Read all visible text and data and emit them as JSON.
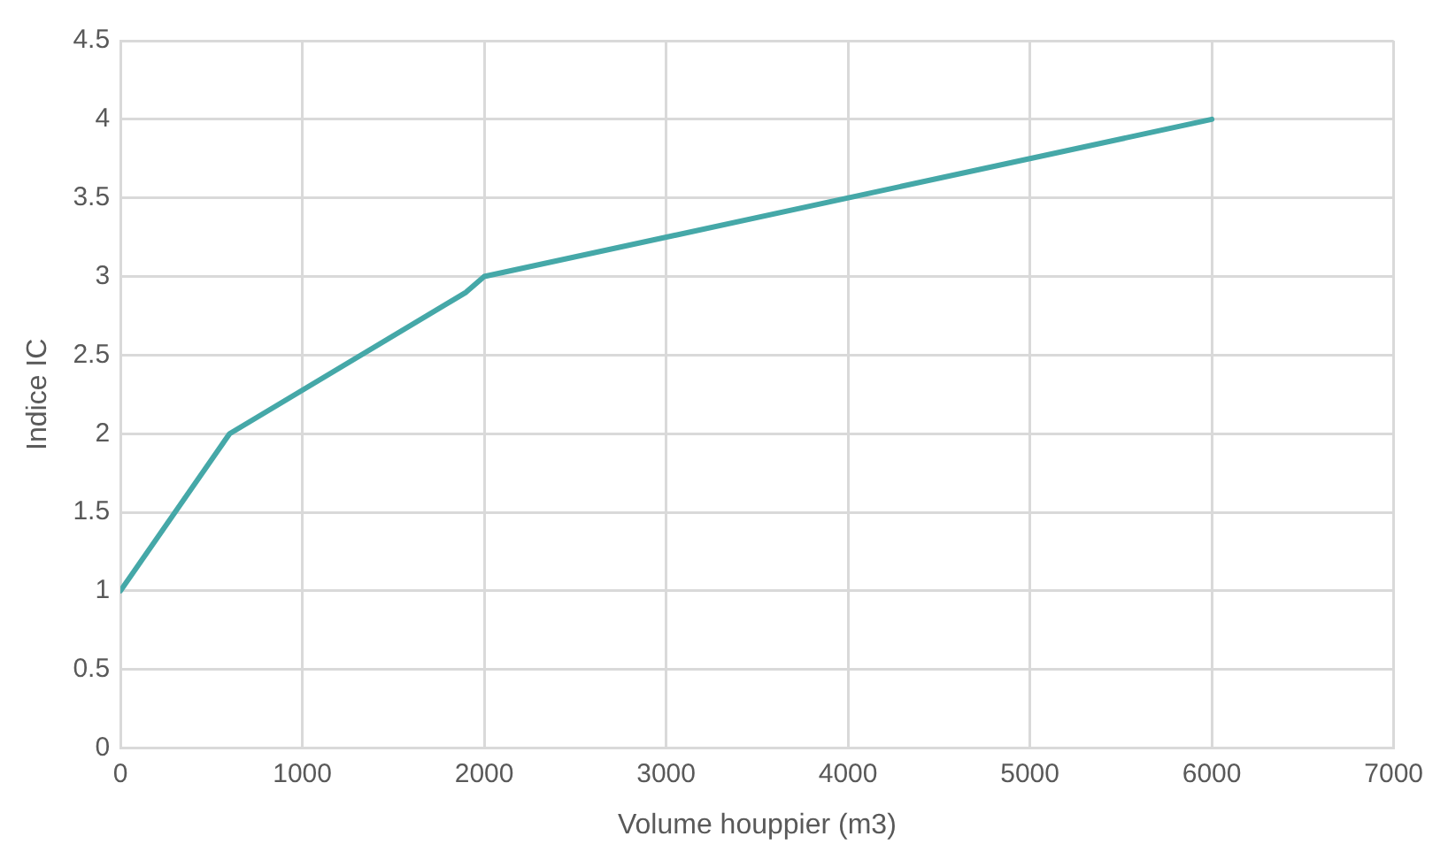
{
  "chart_data": {
    "type": "line",
    "xlabel": "Volume houppier (m3)",
    "ylabel": "Indice IC",
    "x": [
      0,
      600,
      1900,
      2000,
      6000
    ],
    "series": [
      {
        "color": "#45a8a8",
        "values": [
          1,
          2,
          2.9,
          3,
          4
        ]
      }
    ],
    "xlim": [
      0,
      7000
    ],
    "xticks": [
      0,
      1000,
      2000,
      3000,
      4000,
      5000,
      6000,
      7000
    ],
    "ylim": [
      0,
      4.5
    ],
    "yticks": [
      0,
      0.5,
      1,
      1.5,
      2,
      2.5,
      3,
      3.5,
      4,
      4.5
    ],
    "grid": true,
    "legend": false,
    "marker": "none",
    "line_style": "solid"
  }
}
